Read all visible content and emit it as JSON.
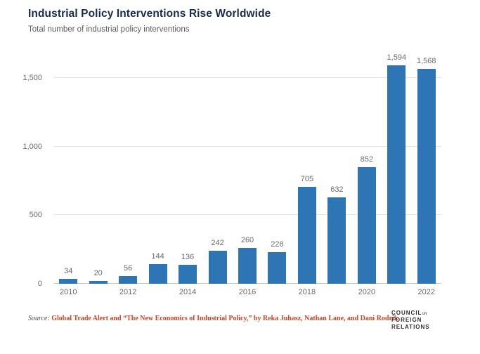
{
  "header": {
    "title": "Industrial Policy Interventions Rise Worldwide",
    "subtitle": "Total number of industrial policy interventions"
  },
  "chart_data": {
    "type": "bar",
    "title": "Industrial Policy Interventions Rise Worldwide",
    "subtitle": "Total number of industrial policy interventions",
    "xlabel": "",
    "ylabel": "",
    "categories": [
      "2010",
      "2011",
      "2012",
      "2013",
      "2014",
      "2015",
      "2016",
      "2017",
      "2018",
      "2019",
      "2020",
      "2021",
      "2022"
    ],
    "values": [
      34,
      20,
      56,
      144,
      136,
      242,
      260,
      228,
      705,
      632,
      852,
      1594,
      1568
    ],
    "value_labels": [
      "34",
      "20",
      "56",
      "144",
      "136",
      "242",
      "260",
      "228",
      "705",
      "632",
      "852",
      "1,594",
      "1,568"
    ],
    "x_tick_labels": [
      "2010",
      "2012",
      "2014",
      "2016",
      "2018",
      "2020",
      "2022"
    ],
    "x_tick_indices": [
      0,
      2,
      4,
      6,
      8,
      10,
      12
    ],
    "y_ticks": [
      0,
      500,
      1000,
      1500
    ],
    "y_tick_labels": [
      "0",
      "500",
      "1,000",
      "1,500"
    ],
    "ylim": [
      0,
      1659
    ],
    "grid": true,
    "legend": "none",
    "bar_color": "#2e75b6"
  },
  "footer": {
    "source_prefix": "Source:",
    "source_text": "Global Trade Alert and “The New Economics of Industrial Policy,” by Reka Juhasz, Nathan Lane, and Dani Rodrik",
    "logo_line1": "COUNCIL",
    "logo_on": "on",
    "logo_line2": "FOREIGN",
    "logo_line3": "RELATIONS"
  },
  "colors": {
    "bar": "#2e75b6",
    "title": "#1b2b4d",
    "subtitle": "#5c5c5c",
    "axis_label": "#6a6a6a",
    "gridline": "#e4e4e4",
    "baseline": "#c9c9c9",
    "source_link": "#cc4426"
  }
}
